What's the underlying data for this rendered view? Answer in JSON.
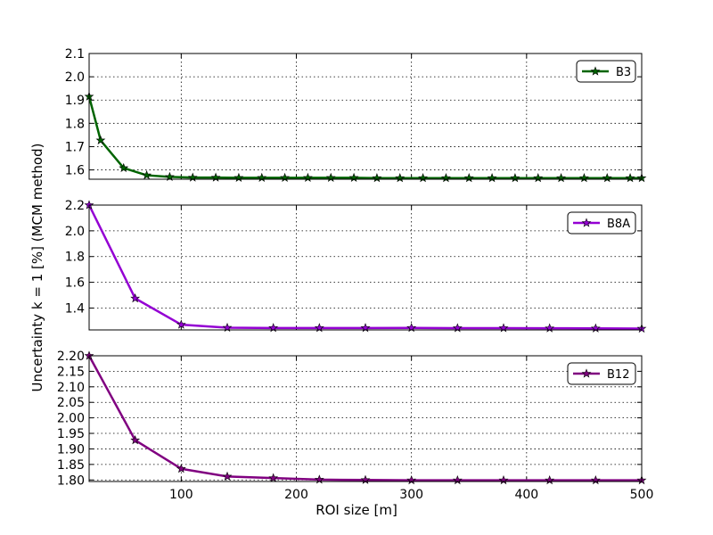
{
  "ylabel": "Uncertainty k = 1 [%] (MCM method)",
  "xlabel": "ROI size [m]",
  "chart_data": [
    {
      "type": "line",
      "xlim": [
        20,
        500
      ],
      "ylim": [
        1.56,
        2.1
      ],
      "xticks": [
        100,
        200,
        300,
        400,
        500
      ],
      "xtick_labels": [
        "100",
        "200",
        "300",
        "400",
        "500"
      ],
      "yticks": [
        1.6,
        1.7,
        1.8,
        1.9,
        2.0,
        2.1
      ],
      "ytick_labels": [
        "1.6",
        "1.7",
        "1.8",
        "1.9",
        "2.0",
        "2.1"
      ],
      "show_xtick_labels": false,
      "grid": true,
      "legend_position": "top-right",
      "series": [
        {
          "name": "B3",
          "color": "#006400",
          "marker": "star",
          "x": [
            20,
            30,
            50,
            70,
            90,
            110,
            130,
            150,
            170,
            190,
            210,
            230,
            250,
            270,
            290,
            310,
            330,
            350,
            370,
            390,
            410,
            430,
            450,
            470,
            490,
            500
          ],
          "y": [
            1.915,
            1.727,
            1.608,
            1.577,
            1.57,
            1.567,
            1.567,
            1.566,
            1.566,
            1.566,
            1.566,
            1.566,
            1.566,
            1.565,
            1.565,
            1.565,
            1.565,
            1.565,
            1.565,
            1.565,
            1.565,
            1.565,
            1.565,
            1.565,
            1.565,
            1.565
          ]
        }
      ]
    },
    {
      "type": "line",
      "xlim": [
        20,
        500
      ],
      "ylim": [
        1.23,
        2.2
      ],
      "xticks": [
        100,
        200,
        300,
        400,
        500
      ],
      "xtick_labels": [
        "100",
        "200",
        "300",
        "400",
        "500"
      ],
      "yticks": [
        1.4,
        1.6,
        1.8,
        2.0,
        2.2
      ],
      "ytick_labels": [
        "1.4",
        "1.6",
        "1.8",
        "2.0",
        "2.2"
      ],
      "show_xtick_labels": false,
      "grid": true,
      "legend_position": "top-right",
      "series": [
        {
          "name": "B8A",
          "color": "#9400D3",
          "marker": "star",
          "x": [
            20,
            60,
            100,
            140,
            180,
            220,
            260,
            300,
            340,
            380,
            420,
            460,
            500
          ],
          "y": [
            2.2,
            1.475,
            1.271,
            1.247,
            1.245,
            1.245,
            1.245,
            1.246,
            1.244,
            1.244,
            1.243,
            1.242,
            1.24
          ]
        }
      ]
    },
    {
      "type": "line",
      "xlim": [
        20,
        500
      ],
      "ylim": [
        1.795,
        2.2
      ],
      "xticks": [
        100,
        200,
        300,
        400,
        500
      ],
      "xtick_labels": [
        "100",
        "200",
        "300",
        "400",
        "500"
      ],
      "yticks": [
        1.8,
        1.85,
        1.9,
        1.95,
        2.0,
        2.05,
        2.1,
        2.15,
        2.2
      ],
      "ytick_labels": [
        "1.80",
        "1.85",
        "1.90",
        "1.95",
        "2.00",
        "2.05",
        "2.10",
        "2.15",
        "2.20"
      ],
      "show_xtick_labels": true,
      "grid": true,
      "legend_position": "top-right",
      "series": [
        {
          "name": "B12",
          "color": "#800080",
          "marker": "star",
          "x": [
            20,
            60,
            100,
            140,
            180,
            220,
            260,
            300,
            340,
            380,
            420,
            460,
            500
          ],
          "y": [
            2.2,
            1.928,
            1.836,
            1.811,
            1.806,
            1.801,
            1.8,
            1.799,
            1.799,
            1.799,
            1.799,
            1.799,
            1.799
          ]
        }
      ]
    }
  ]
}
